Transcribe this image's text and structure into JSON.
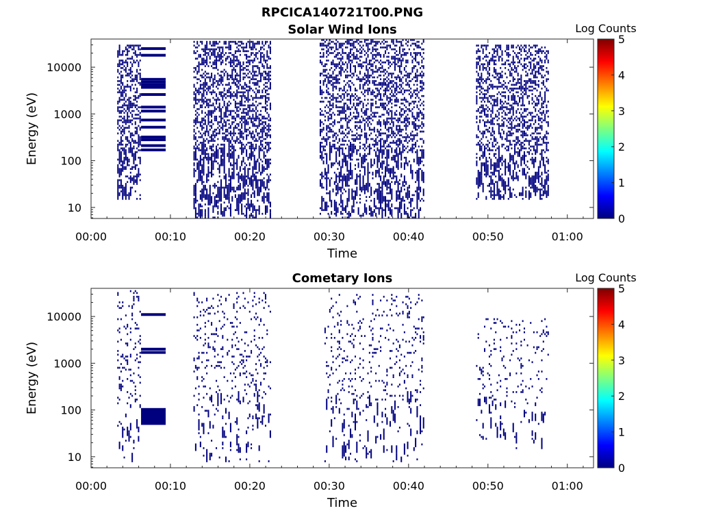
{
  "figure_title": "RPCICA140721T00.PNG",
  "chart_data": [
    {
      "type": "heatmap",
      "title": "Solar Wind Ions",
      "xlabel": "Time",
      "ylabel": "Energy (eV)",
      "colorbar": {
        "label": "Log Counts",
        "ticks": [
          "0",
          "1",
          "2",
          "3",
          "4",
          "5"
        ],
        "range": [
          0,
          5
        ],
        "colormap": [
          "#00007f",
          "#0000ff",
          "#007fff",
          "#00ffff",
          "#7fff7f",
          "#ffff00",
          "#ff7f00",
          "#ff0000",
          "#7f0000"
        ]
      },
      "x_ticks": [
        "00:00",
        "00:10",
        "00:20",
        "00:30",
        "00:40",
        "00:50",
        "01:00"
      ],
      "y_ticks": [
        "10",
        "100",
        "1000",
        "10000"
      ],
      "y_scale": "log",
      "xlim_minutes": [
        0,
        63.3
      ],
      "ylim_eV": [
        5.8,
        40000
      ],
      "bursts": [
        {
          "start_min": 3.3,
          "end_min": 6.3,
          "min_eV": 15,
          "max_eV": 30000,
          "density": 0.45
        },
        {
          "start_min": 6.3,
          "end_min": 9.4,
          "constant_eV": [
            170,
            210,
            280,
            320,
            520,
            740,
            1150,
            1400,
            2600,
            3700,
            4200,
            4800,
            5500,
            18000,
            25000
          ]
        },
        {
          "start_min": 12.9,
          "end_min": 22.5,
          "min_eV": 6,
          "max_eV": 36000,
          "density": 0.45
        },
        {
          "start_min": 28.8,
          "end_min": 41.9,
          "min_eV": 6,
          "max_eV": 38000,
          "density": 0.4
        },
        {
          "start_min": 48.5,
          "end_min": 57.7,
          "min_eV": 15,
          "max_eV": 30000,
          "density": 0.4
        }
      ],
      "count_level": 0
    },
    {
      "type": "heatmap",
      "title": "Cometary Ions",
      "xlabel": "Time",
      "ylabel": "Energy (eV)",
      "colorbar": {
        "label": "Log Counts",
        "ticks": [
          "0",
          "1",
          "2",
          "3",
          "4",
          "5"
        ],
        "range": [
          0,
          5
        ],
        "colormap": [
          "#00007f",
          "#0000ff",
          "#007fff",
          "#00ffff",
          "#7fff7f",
          "#ffff00",
          "#ff7f00",
          "#ff0000",
          "#7f0000"
        ]
      },
      "x_ticks": [
        "00:00",
        "00:10",
        "00:20",
        "00:30",
        "00:40",
        "00:50",
        "01:00"
      ],
      "y_ticks": [
        "10",
        "100",
        "1000",
        "10000"
      ],
      "y_scale": "log",
      "xlim_minutes": [
        0,
        63.3
      ],
      "ylim_eV": [
        5.8,
        40000
      ],
      "bursts": [
        {
          "start_min": 3.3,
          "end_min": 6.3,
          "min_eV": 8,
          "max_eV": 36000,
          "density": 0.12
        },
        {
          "start_min": 6.3,
          "end_min": 9.4,
          "constant_eV": [
            1700,
            2000,
            11000
          ]
        },
        {
          "start_min": 6.3,
          "end_min": 9.4,
          "block_eV": [
            48,
            110
          ]
        },
        {
          "start_min": 12.9,
          "end_min": 22.5,
          "min_eV": 8,
          "max_eV": 33000,
          "density": 0.11
        },
        {
          "start_min": 29.4,
          "end_min": 41.9,
          "min_eV": 8,
          "max_eV": 30000,
          "density": 0.09
        },
        {
          "start_min": 48.5,
          "end_min": 57.7,
          "min_eV": 15,
          "max_eV": 9000,
          "density": 0.08
        }
      ],
      "count_level": 0
    }
  ]
}
